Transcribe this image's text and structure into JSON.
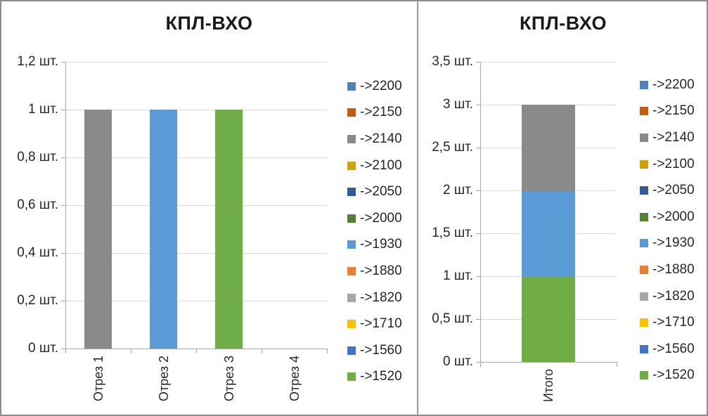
{
  "chart_data": [
    {
      "type": "bar",
      "title": "КПЛ-ВХО",
      "unit": "шт.",
      "categories": [
        "Отрез 1",
        "Отрез 2",
        "Отрез 3",
        "Отрез 4"
      ],
      "series": [
        {
          "name": "->2200",
          "color": "#4E81BD",
          "values": [
            0,
            0,
            0,
            0
          ]
        },
        {
          "name": "->2150",
          "color": "#C55A11",
          "values": [
            0,
            0,
            0,
            0
          ]
        },
        {
          "name": "->2140",
          "color": "#8A8A8A",
          "values": [
            1,
            0,
            0,
            0
          ]
        },
        {
          "name": "->2100",
          "color": "#D2A106",
          "values": [
            0,
            0,
            0,
            0
          ]
        },
        {
          "name": "->2050",
          "color": "#345A9D",
          "values": [
            0,
            0,
            0,
            0
          ]
        },
        {
          "name": "->2000",
          "color": "#548235",
          "values": [
            0,
            0,
            0,
            0
          ]
        },
        {
          "name": "->1930",
          "color": "#5B9BD5",
          "values": [
            0,
            1,
            0,
            0
          ]
        },
        {
          "name": "->1880",
          "color": "#ED7D31",
          "values": [
            0,
            0,
            0,
            0
          ]
        },
        {
          "name": "->1820",
          "color": "#A6A6A6",
          "values": [
            0,
            0,
            0,
            0
          ]
        },
        {
          "name": "->1710",
          "color": "#FFC000",
          "values": [
            0,
            0,
            0,
            0
          ]
        },
        {
          "name": "->1560",
          "color": "#4472C4",
          "values": [
            0,
            0,
            0,
            0
          ]
        },
        {
          "name": "->1520",
          "color": "#70AD47",
          "values": [
            0,
            0,
            1,
            0
          ]
        }
      ],
      "y_tick_labels": [
        "1,2 шт.",
        "1 шт.",
        "0,8 шт.",
        "0,6 шт.",
        "0,4 шт.",
        "0,2 шт.",
        "0 шт."
      ],
      "ylim": [
        0,
        1.2
      ],
      "grid": true,
      "legend_position": "right"
    },
    {
      "type": "stacked-bar",
      "title": "КПЛ-ВХО",
      "unit": "шт.",
      "categories": [
        "Итого"
      ],
      "stack_order_bottom_to_top": [
        "->1520",
        "->1930",
        "->2140"
      ],
      "series": [
        {
          "name": "->2200",
          "color": "#4E81BD",
          "values": [
            0
          ]
        },
        {
          "name": "->2150",
          "color": "#C55A11",
          "values": [
            0
          ]
        },
        {
          "name": "->2140",
          "color": "#8A8A8A",
          "values": [
            1
          ]
        },
        {
          "name": "->2100",
          "color": "#D2A106",
          "values": [
            0
          ]
        },
        {
          "name": "->2050",
          "color": "#345A9D",
          "values": [
            0
          ]
        },
        {
          "name": "->2000",
          "color": "#548235",
          "values": [
            0
          ]
        },
        {
          "name": "->1930",
          "color": "#5B9BD5",
          "values": [
            1
          ]
        },
        {
          "name": "->1880",
          "color": "#ED7D31",
          "values": [
            0
          ]
        },
        {
          "name": "->1820",
          "color": "#A6A6A6",
          "values": [
            0
          ]
        },
        {
          "name": "->1710",
          "color": "#FFC000",
          "values": [
            0
          ]
        },
        {
          "name": "->1560",
          "color": "#4472C4",
          "values": [
            0
          ]
        },
        {
          "name": "->1520",
          "color": "#70AD47",
          "values": [
            1
          ]
        }
      ],
      "y_tick_labels": [
        "3,5 шт.",
        "3 шт.",
        "2,5 шт.",
        "2 шт.",
        "1,5 шт.",
        "1 шт.",
        "0,5 шт.",
        "0 шт."
      ],
      "ylim": [
        0,
        3.5
      ],
      "grid": true,
      "legend_position": "right"
    }
  ]
}
